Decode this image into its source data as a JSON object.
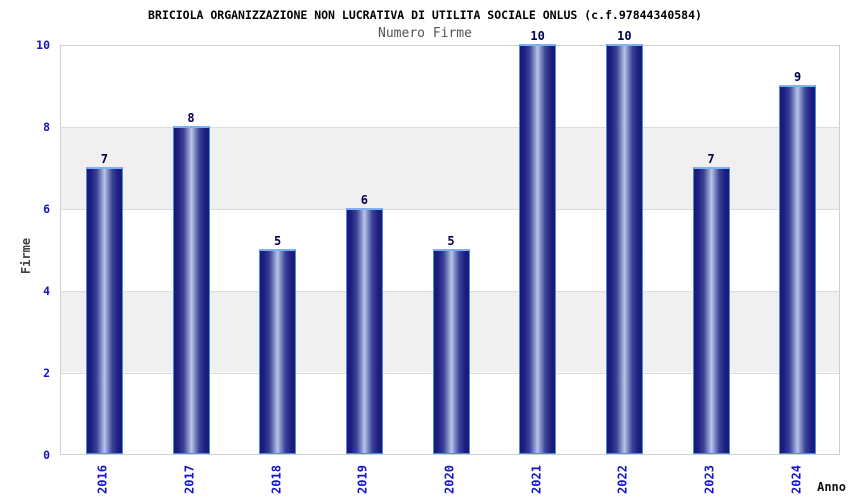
{
  "chart_data": {
    "type": "bar",
    "title": "BRICIOLA ORGANIZZAZIONE NON LUCRATIVA DI UTILITA SOCIALE ONLUS (c.f.97844340584)",
    "subtitle": "Numero Firme",
    "xlabel": "Anno",
    "ylabel": "Firme",
    "categories": [
      "2016",
      "2017",
      "2018",
      "2019",
      "2020",
      "2021",
      "2022",
      "2023",
      "2024"
    ],
    "values": [
      7,
      8,
      5,
      6,
      5,
      10,
      10,
      7,
      9
    ],
    "ylim": [
      0,
      10
    ],
    "yticks": [
      0,
      2,
      4,
      6,
      8,
      10
    ],
    "legend": "none",
    "grid": "alternating horizontal bands every 2 units",
    "colors": {
      "tick_label": "#1414cc",
      "value_label": "#00004d",
      "title": "#000000",
      "subtitle": "#555555",
      "axis_title": "#404040",
      "band_gray": "#f0f0f0",
      "plot_border": "#cfcfcf",
      "bar_edge_dark": "#181875",
      "bar_center_light": "#bcc4e6",
      "bar_outline": "#4f8fe0"
    }
  }
}
